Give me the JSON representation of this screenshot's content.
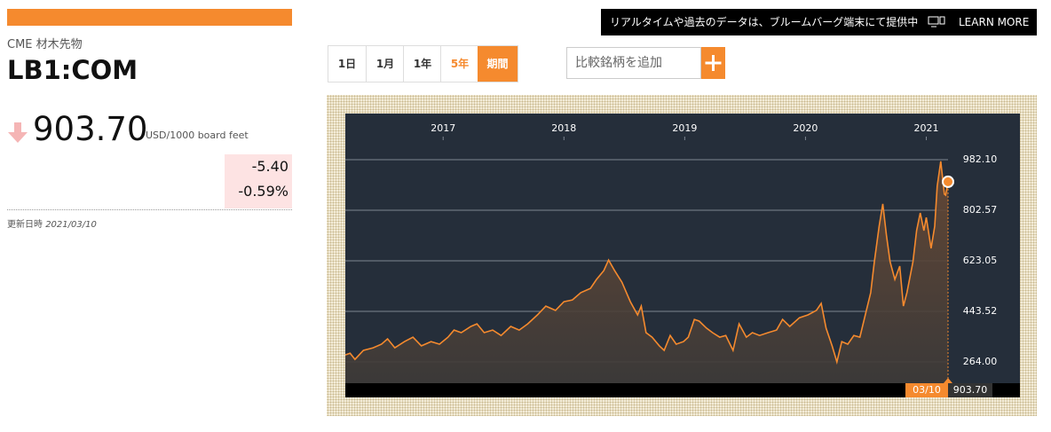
{
  "header": {
    "exchange": "CME 材木先物",
    "ticker": "LB1:COM",
    "price": "903.70",
    "unit": "USD/1000 board feet",
    "change": "-5.40",
    "change_pct": "-0.59%",
    "updated_label": "更新日時",
    "updated": "2021/03/10"
  },
  "banner": {
    "text": "リアルタイムや過去のデータは、ブルームバーグ端末にて提供中",
    "link": "LEARN MORE"
  },
  "range_buttons": [
    "1日",
    "1月",
    "1年",
    "5年",
    "期間"
  ],
  "compare": {
    "placeholder": "比較銘柄を追加"
  },
  "chart_data": {
    "type": "area",
    "color": "#f58a2e",
    "x": [
      2016.19,
      2016.23,
      2016.27,
      2016.34,
      2016.42,
      2016.49,
      2016.54,
      2016.6,
      2016.68,
      2016.75,
      2016.82,
      2016.9,
      2016.97,
      2017.04,
      2017.09,
      2017.15,
      2017.23,
      2017.28,
      2017.34,
      2017.41,
      2017.48,
      2017.56,
      2017.63,
      2017.7,
      2017.78,
      2017.85,
      2017.93,
      2018.0,
      2018.07,
      2018.14,
      2018.22,
      2018.27,
      2018.33,
      2018.37,
      2018.42,
      2018.48,
      2018.55,
      2018.61,
      2018.64,
      2018.68,
      2018.73,
      2018.79,
      2018.83,
      2018.88,
      2018.93,
      2018.99,
      2019.03,
      2019.08,
      2019.12,
      2019.18,
      2019.23,
      2019.29,
      2019.34,
      2019.4,
      2019.45,
      2019.51,
      2019.56,
      2019.62,
      2019.69,
      2019.76,
      2019.81,
      2019.87,
      2019.95,
      2020.02,
      2020.09,
      2020.13,
      2020.17,
      2020.22,
      2020.26,
      2020.3,
      2020.35,
      2020.4,
      2020.45,
      2020.5,
      2020.54,
      2020.57,
      2020.61,
      2020.64,
      2020.67,
      2020.7,
      2020.74,
      2020.78,
      2020.81,
      2020.84,
      2020.89,
      2020.92,
      2020.95,
      2020.98,
      2021.0,
      2021.04,
      2021.07,
      2021.09,
      2021.12,
      2021.15,
      2021.16,
      2021.18
    ],
    "values": [
      289,
      295,
      273,
      305,
      314,
      327,
      346,
      314,
      336,
      352,
      321,
      336,
      327,
      352,
      377,
      368,
      390,
      399,
      368,
      377,
      358,
      390,
      377,
      399,
      431,
      462,
      447,
      478,
      484,
      510,
      525,
      557,
      588,
      626,
      588,
      547,
      478,
      431,
      462,
      368,
      352,
      321,
      305,
      358,
      327,
      336,
      352,
      415,
      409,
      384,
      368,
      352,
      358,
      305,
      399,
      352,
      368,
      358,
      368,
      377,
      415,
      390,
      421,
      431,
      447,
      472,
      384,
      321,
      264,
      336,
      327,
      358,
      352,
      440,
      510,
      620,
      746,
      825,
      714,
      620,
      557,
      604,
      462,
      510,
      620,
      730,
      793,
      730,
      777,
      667,
      746,
      888,
      976,
      860,
      856,
      903.7
    ],
    "xlim": [
      2016.19,
      2021.18
    ],
    "xticks": [
      2017,
      2018,
      2019,
      2020,
      2021
    ],
    "ylim": [
      188.4,
      1145.9
    ],
    "yticks": [
      {
        "value": 264,
        "label": "264.00"
      },
      {
        "value": 443.52,
        "label": "443.52"
      },
      {
        "value": 623.05,
        "label": "623.05"
      },
      {
        "value": 802.57,
        "label": "802.57"
      },
      {
        "value": 982.1,
        "label": "982.10"
      }
    ],
    "grid": true,
    "end_date": "03/10"
  }
}
